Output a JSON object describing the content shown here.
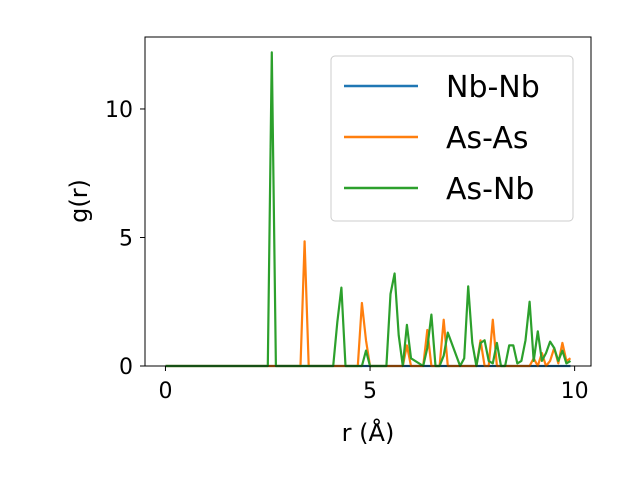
{
  "chart_data": {
    "type": "line",
    "title": "",
    "xlabel": "r (Å)",
    "ylabel": "g(r)",
    "xlim": [
      -0.5,
      10.4
    ],
    "ylim": [
      0,
      12.8
    ],
    "xticks": [
      0,
      5,
      10
    ],
    "yticks": [
      0,
      5,
      10
    ],
    "grid": false,
    "legend_position": "top-right",
    "series": [
      {
        "name": "Nb-Nb",
        "color": "#1f77b4",
        "x": [
          0,
          2.55,
          2.6,
          2.65,
          3.35,
          3.45,
          3.55,
          4.8,
          4.9,
          5.0,
          5.8,
          5.9,
          6.0,
          6.5,
          6.6,
          6.7,
          6.9,
          7.0,
          7.1,
          7.7,
          7.8,
          7.9,
          8.0,
          8.1,
          8.2,
          9.0,
          9.1,
          9.2,
          9.3,
          9.4,
          9.5,
          9.6,
          9.7,
          9.8,
          9.9
        ],
        "y": [
          0,
          0,
          0,
          0,
          0,
          0,
          0,
          0,
          0,
          0,
          0,
          0,
          0,
          0,
          0,
          0,
          0,
          0,
          0,
          0,
          0,
          0,
          0,
          0,
          0,
          0,
          0,
          0,
          0,
          0,
          0,
          0,
          0,
          0,
          0
        ]
      },
      {
        "name": "As-As",
        "color": "#ff7f0e",
        "x": [
          0,
          3.3,
          3.4,
          3.5,
          4.7,
          4.8,
          4.9,
          5.0,
          5.1,
          5.8,
          5.9,
          6.0,
          6.3,
          6.4,
          6.5,
          6.7,
          6.8,
          6.9,
          7.6,
          7.7,
          7.8,
          7.9,
          8.0,
          8.1,
          8.9,
          9.0,
          9.1,
          9.2,
          9.3,
          9.4,
          9.5,
          9.6,
          9.7,
          9.8,
          9.9
        ],
        "y": [
          0,
          0,
          4.85,
          0,
          0,
          2.45,
          1.0,
          0,
          0,
          0,
          0.8,
          0,
          0,
          1.4,
          0,
          0,
          1.8,
          0,
          0,
          1.0,
          0,
          0,
          1.8,
          0,
          0,
          0.3,
          0,
          0.5,
          0,
          0.2,
          0.7,
          0.1,
          0.9,
          0.2,
          0.3
        ]
      },
      {
        "name": "As-Nb",
        "color": "#2ca02c",
        "x": [
          0,
          2.5,
          2.6,
          2.7,
          4.1,
          4.2,
          4.3,
          4.4,
          4.8,
          4.9,
          5.0,
          5.4,
          5.5,
          5.6,
          5.7,
          5.8,
          5.9,
          6.0,
          6.3,
          6.4,
          6.5,
          6.6,
          6.7,
          6.8,
          6.9,
          7.2,
          7.3,
          7.4,
          7.5,
          7.6,
          7.7,
          7.8,
          7.9,
          8.0,
          8.1,
          8.2,
          8.3,
          8.4,
          8.5,
          8.6,
          8.7,
          8.8,
          8.9,
          9.0,
          9.1,
          9.2,
          9.3,
          9.4,
          9.5,
          9.6,
          9.7,
          9.8,
          9.9
        ],
        "y": [
          0,
          0,
          12.2,
          0,
          0,
          1.7,
          3.05,
          0,
          0,
          0.6,
          0,
          0,
          2.8,
          3.6,
          1.2,
          0,
          1.6,
          0.3,
          0,
          0.7,
          2.0,
          0,
          0,
          0.4,
          1.3,
          0,
          0.3,
          3.1,
          0.9,
          0,
          0.9,
          1.0,
          0.2,
          0.1,
          0.9,
          0,
          0,
          0.8,
          0.8,
          0.1,
          0.2,
          1.0,
          2.5,
          0.2,
          1.35,
          0.2,
          0.5,
          0.95,
          0.7,
          0.2,
          0.6,
          0.1,
          0.2
        ]
      }
    ]
  }
}
